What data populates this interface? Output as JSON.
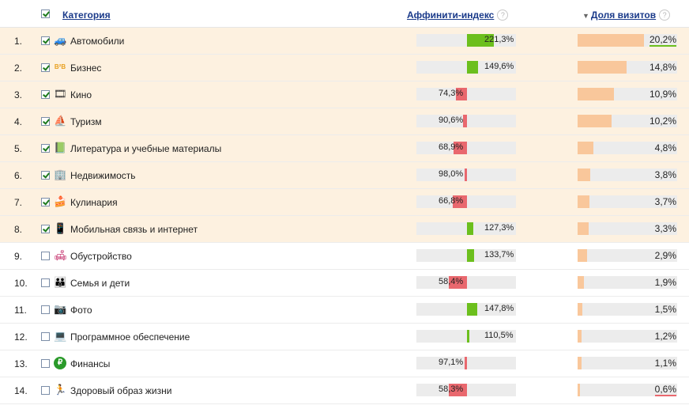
{
  "header": {
    "category_label": "Категория",
    "affinity_label": "Аффинити-индекс",
    "share_label": "Доля визитов",
    "help_glyph": "?",
    "sort_glyph": "▼"
  },
  "affinity_scale_max": 250,
  "share_scale_max": 22,
  "rows": [
    {
      "num": "1.",
      "checked": true,
      "icon": "car-icon",
      "glyph": "🚙",
      "icon_color": "#2a6fd0",
      "label": "Автомобили",
      "affinity": 221.3,
      "affinity_text": "221,3%",
      "share": 20.2,
      "share_text": "20,2%",
      "underline": "green"
    },
    {
      "num": "2.",
      "checked": true,
      "icon": "b2b-icon",
      "glyph": "B²B",
      "icon_color": "#e8a020",
      "label": "Бизнес",
      "affinity": 149.6,
      "affinity_text": "149,6%",
      "share": 14.8,
      "share_text": "14,8%",
      "underline": ""
    },
    {
      "num": "3.",
      "checked": true,
      "icon": "film-icon",
      "glyph": "🎞",
      "icon_color": "#333333",
      "label": "Кино",
      "affinity": 74.3,
      "affinity_text": "74,3%",
      "share": 10.9,
      "share_text": "10,9%",
      "underline": ""
    },
    {
      "num": "4.",
      "checked": true,
      "icon": "sailboat-icon",
      "glyph": "⛵",
      "icon_color": "#d22020",
      "label": "Туризм",
      "affinity": 90.6,
      "affinity_text": "90,6%",
      "share": 10.2,
      "share_text": "10,2%",
      "underline": ""
    },
    {
      "num": "5.",
      "checked": true,
      "icon": "book-icon",
      "glyph": "📗",
      "icon_color": "#2a8a2a",
      "label": "Литература и учебные материалы",
      "affinity": 68.9,
      "affinity_text": "68,9%",
      "share": 4.8,
      "share_text": "4,8%",
      "underline": ""
    },
    {
      "num": "6.",
      "checked": true,
      "icon": "building-icon",
      "glyph": "🏢",
      "icon_color": "#e8a020",
      "label": "Недвижимость",
      "affinity": 98.0,
      "affinity_text": "98,0%",
      "share": 3.8,
      "share_text": "3,8%",
      "underline": ""
    },
    {
      "num": "7.",
      "checked": true,
      "icon": "cake-icon",
      "glyph": "🍰",
      "icon_color": "#c040c0",
      "label": "Кулинария",
      "affinity": 66.8,
      "affinity_text": "66,8%",
      "share": 3.7,
      "share_text": "3,7%",
      "underline": ""
    },
    {
      "num": "8.",
      "checked": true,
      "icon": "phone-icon",
      "glyph": "📱",
      "icon_color": "#e8a020",
      "label": "Мобильная связь и интернет",
      "affinity": 127.3,
      "affinity_text": "127,3%",
      "share": 3.3,
      "share_text": "3,3%",
      "underline": ""
    },
    {
      "num": "9.",
      "checked": false,
      "icon": "sofa-icon",
      "glyph": "🛋",
      "icon_color": "#c02060",
      "label": "Обустройство",
      "affinity": 133.7,
      "affinity_text": "133,7%",
      "share": 2.9,
      "share_text": "2,9%",
      "underline": ""
    },
    {
      "num": "10.",
      "checked": false,
      "icon": "family-icon",
      "glyph": "👪",
      "icon_color": "#2a6fd0",
      "label": "Семья и дети",
      "affinity": 58.4,
      "affinity_text": "58,4%",
      "share": 1.9,
      "share_text": "1,9%",
      "underline": ""
    },
    {
      "num": "11.",
      "checked": false,
      "icon": "camera-icon",
      "glyph": "📷",
      "icon_color": "#555555",
      "label": "Фото",
      "affinity": 147.8,
      "affinity_text": "147,8%",
      "share": 1.5,
      "share_text": "1,5%",
      "underline": ""
    },
    {
      "num": "12.",
      "checked": false,
      "icon": "laptop-icon",
      "glyph": "💻",
      "icon_color": "#2a8ad0",
      "label": "Программное обеспечение",
      "affinity": 110.5,
      "affinity_text": "110,5%",
      "share": 1.2,
      "share_text": "1,2%",
      "underline": ""
    },
    {
      "num": "13.",
      "checked": false,
      "icon": "ruble-icon",
      "glyph": "₽",
      "icon_color": "#2a9a2a",
      "label": "Финансы",
      "affinity": 97.1,
      "affinity_text": "97,1%",
      "share": 1.1,
      "share_text": "1,1%",
      "underline": ""
    },
    {
      "num": "14.",
      "checked": false,
      "icon": "runner-icon",
      "glyph": "🏃",
      "icon_color": "#d22020",
      "label": "Здоровый образ жизни",
      "affinity": 58.3,
      "affinity_text": "58,3%",
      "share": 0.6,
      "share_text": "0,6%",
      "underline": "red"
    }
  ]
}
